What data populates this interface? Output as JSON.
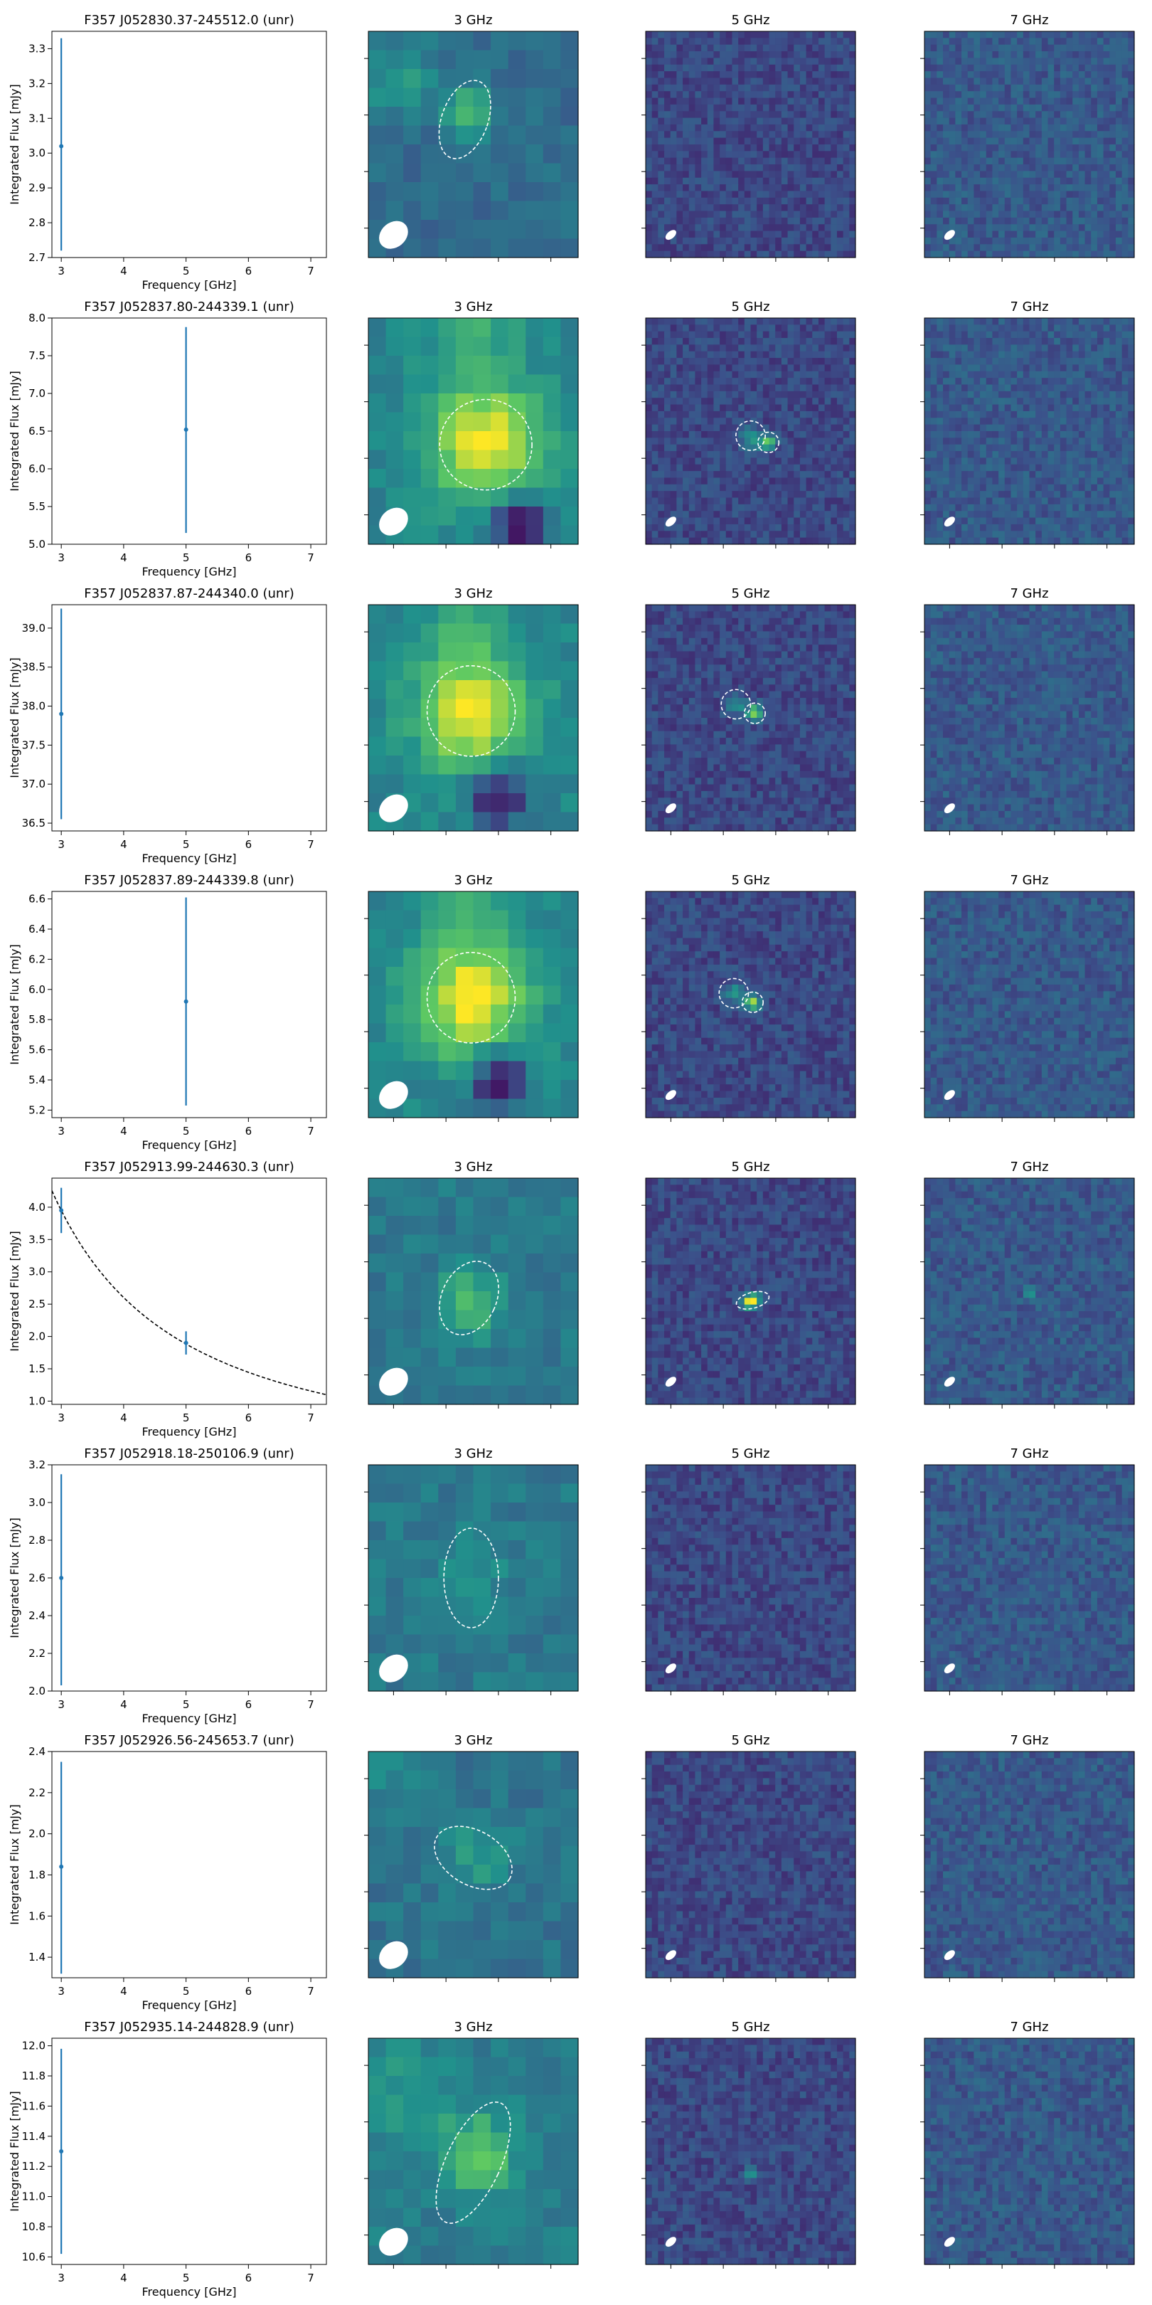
{
  "figure": {
    "colors": {
      "errorbar": "#1f77b4",
      "fit_line": "#000000",
      "beam": "#ffffff",
      "ellipse": "#ffffff",
      "colormap": [
        "#440154",
        "#3b528b",
        "#21918c",
        "#5ec962",
        "#fde725"
      ]
    },
    "band_titles": [
      "3 GHz",
      "5 GHz",
      "7 GHz"
    ],
    "xlabel": "Frequency [GHz]",
    "ylabel": "Integrated Flux [mJy]",
    "xticks": [
      3,
      4,
      5,
      6,
      7
    ],
    "xlim": [
      2.85,
      7.25
    ]
  },
  "chart_data": [
    {
      "type": "scatter",
      "title": "F357 J052830.37-245512.0 (unr)",
      "points": [
        {
          "x": 3,
          "y": 3.02,
          "yerr_low": 2.72,
          "yerr_high": 3.33
        }
      ],
      "ylim": [
        2.7,
        3.35
      ],
      "yticks": [
        "2.7",
        "2.8",
        "2.9",
        "3.0",
        "3.1",
        "3.2",
        "3.3"
      ],
      "fit": null,
      "images": {
        "band3": {
          "base": 0.35,
          "blobs": [
            {
              "cx": 0.48,
              "cy": 0.37,
              "s": 0.08,
              "a": 0.35
            },
            {
              "cx": 0.15,
              "cy": 0.22,
              "s": 0.12,
              "a": 0.18
            }
          ],
          "ellipses": [
            {
              "cx": 0.46,
              "cy": 0.39,
              "rx": 0.11,
              "ry": 0.18,
              "rot": 20
            }
          ],
          "beam": true
        },
        "band5": {
          "base": 0.22,
          "blobs": [],
          "ellipses": [],
          "beam": true
        },
        "band7": {
          "base": 0.28,
          "blobs": [],
          "ellipses": [],
          "beam": true
        }
      }
    },
    {
      "type": "scatter",
      "title": "F357 J052837.80-244339.1 (unr)",
      "points": [
        {
          "x": 5,
          "y": 6.52,
          "yerr_low": 5.15,
          "yerr_high": 7.88
        }
      ],
      "ylim": [
        5.0,
        8.0
      ],
      "yticks": [
        "5.0",
        "5.5",
        "6.0",
        "6.5",
        "7.0",
        "7.5",
        "8.0"
      ],
      "fit": null,
      "images": {
        "band3": {
          "base": 0.45,
          "blobs": [
            {
              "cx": 0.56,
              "cy": 0.55,
              "s": 0.18,
              "a": 0.55
            },
            {
              "cx": 0.5,
              "cy": 0.05,
              "s": 0.15,
              "a": 0.15
            }
          ],
          "dark": [
            {
              "cx": 0.72,
              "cy": 0.9,
              "s": 0.09,
              "a": 0.45
            }
          ],
          "ellipses": [
            {
              "cx": 0.56,
              "cy": 0.56,
              "rx": 0.22,
              "ry": 0.2,
              "rot": 0
            }
          ],
          "beam": true
        },
        "band5": {
          "base": 0.22,
          "blobs": [
            {
              "cx": 0.5,
              "cy": 0.53,
              "s": 0.03,
              "a": 0.35
            },
            {
              "cx": 0.58,
              "cy": 0.55,
              "s": 0.025,
              "a": 0.6
            }
          ],
          "ellipses": [
            {
              "cx": 0.5,
              "cy": 0.52,
              "rx": 0.07,
              "ry": 0.065,
              "rot": 0
            },
            {
              "cx": 0.585,
              "cy": 0.55,
              "rx": 0.05,
              "ry": 0.045,
              "rot": 0
            }
          ],
          "beam": true
        },
        "band7": {
          "base": 0.28,
          "blobs": [],
          "ellipses": [],
          "beam": true
        }
      }
    },
    {
      "type": "scatter",
      "title": "F357 J052837.87-244340.0 (unr)",
      "points": [
        {
          "x": 3,
          "y": 37.9,
          "yerr_low": 36.55,
          "yerr_high": 39.25
        }
      ],
      "ylim": [
        36.4,
        39.3
      ],
      "yticks": [
        "36.5",
        "37.0",
        "37.5",
        "38.0",
        "38.5",
        "39.0"
      ],
      "fit": null,
      "images": {
        "band3": {
          "base": 0.45,
          "blobs": [
            {
              "cx": 0.49,
              "cy": 0.47,
              "s": 0.18,
              "a": 0.55
            },
            {
              "cx": 0.45,
              "cy": 0.05,
              "s": 0.15,
              "a": 0.12
            }
          ],
          "dark": [
            {
              "cx": 0.62,
              "cy": 0.84,
              "s": 0.09,
              "a": 0.45
            }
          ],
          "ellipses": [
            {
              "cx": 0.49,
              "cy": 0.47,
              "rx": 0.21,
              "ry": 0.2,
              "rot": 0
            }
          ],
          "beam": true
        },
        "band5": {
          "base": 0.22,
          "blobs": [
            {
              "cx": 0.43,
              "cy": 0.44,
              "s": 0.03,
              "a": 0.3
            },
            {
              "cx": 0.52,
              "cy": 0.48,
              "s": 0.025,
              "a": 0.6
            }
          ],
          "ellipses": [
            {
              "cx": 0.43,
              "cy": 0.44,
              "rx": 0.07,
              "ry": 0.065,
              "rot": 0
            },
            {
              "cx": 0.52,
              "cy": 0.48,
              "rx": 0.05,
              "ry": 0.045,
              "rot": 0
            }
          ],
          "beam": true
        },
        "band7": {
          "base": 0.28,
          "blobs": [],
          "ellipses": [],
          "beam": true
        }
      }
    },
    {
      "type": "scatter",
      "title": "F357 J052837.89-244339.8 (unr)",
      "points": [
        {
          "x": 5,
          "y": 5.92,
          "yerr_low": 5.23,
          "yerr_high": 6.61
        }
      ],
      "ylim": [
        5.15,
        6.65
      ],
      "yticks": [
        "5.2",
        "5.4",
        "5.6",
        "5.8",
        "6.0",
        "6.2",
        "6.4",
        "6.6"
      ],
      "fit": null,
      "images": {
        "band3": {
          "base": 0.45,
          "blobs": [
            {
              "cx": 0.49,
              "cy": 0.47,
              "s": 0.18,
              "a": 0.55
            },
            {
              "cx": 0.45,
              "cy": 0.05,
              "s": 0.15,
              "a": 0.12
            }
          ],
          "dark": [
            {
              "cx": 0.62,
              "cy": 0.84,
              "s": 0.09,
              "a": 0.45
            }
          ],
          "ellipses": [
            {
              "cx": 0.49,
              "cy": 0.47,
              "rx": 0.21,
              "ry": 0.2,
              "rot": 0
            }
          ],
          "beam": true
        },
        "band5": {
          "base": 0.22,
          "blobs": [
            {
              "cx": 0.42,
              "cy": 0.45,
              "s": 0.03,
              "a": 0.3
            },
            {
              "cx": 0.51,
              "cy": 0.49,
              "s": 0.025,
              "a": 0.6
            }
          ],
          "ellipses": [
            {
              "cx": 0.42,
              "cy": 0.45,
              "rx": 0.07,
              "ry": 0.065,
              "rot": 0
            },
            {
              "cx": 0.51,
              "cy": 0.49,
              "rx": 0.05,
              "ry": 0.045,
              "rot": 0
            }
          ],
          "beam": true
        },
        "band7": {
          "base": 0.28,
          "blobs": [],
          "ellipses": [],
          "beam": true
        }
      }
    },
    {
      "type": "scatter",
      "title": "F357 J052913.99-244630.3 (unr)",
      "points": [
        {
          "x": 3,
          "y": 3.95,
          "yerr_low": 3.6,
          "yerr_high": 4.3
        },
        {
          "x": 5,
          "y": 1.9,
          "yerr_low": 1.72,
          "yerr_high": 2.08
        }
      ],
      "ylim": [
        0.95,
        4.45
      ],
      "yticks": [
        "1.0",
        "1.5",
        "2.0",
        "2.5",
        "3.0",
        "3.5",
        "4.0"
      ],
      "fit": {
        "type": "power-law",
        "x_ref": 3,
        "y_ref": 3.95,
        "alpha": -1.45
      },
      "images": {
        "band3": {
          "base": 0.4,
          "blobs": [
            {
              "cx": 0.48,
              "cy": 0.55,
              "s": 0.1,
              "a": 0.3
            }
          ],
          "ellipses": [
            {
              "cx": 0.48,
              "cy": 0.53,
              "rx": 0.13,
              "ry": 0.17,
              "rot": 25
            }
          ],
          "beam": true
        },
        "band5": {
          "base": 0.22,
          "blobs": [
            {
              "cx": 0.49,
              "cy": 0.55,
              "s": 0.02,
              "a": 0.7
            },
            {
              "cx": 0.52,
              "cy": 0.54,
              "s": 0.02,
              "a": 0.6
            }
          ],
          "ellipses": [
            {
              "cx": 0.51,
              "cy": 0.54,
              "rx": 0.08,
              "ry": 0.035,
              "rot": -15
            }
          ],
          "beam": true
        },
        "band7": {
          "base": 0.28,
          "blobs": [
            {
              "cx": 0.5,
              "cy": 0.5,
              "s": 0.015,
              "a": 0.5
            }
          ],
          "ellipses": [],
          "beam": true
        }
      }
    },
    {
      "type": "scatter",
      "title": "F357 J052918.18-250106.9 (unr)",
      "points": [
        {
          "x": 3,
          "y": 2.6,
          "yerr_low": 2.03,
          "yerr_high": 3.15
        }
      ],
      "ylim": [
        2.0,
        3.2
      ],
      "yticks": [
        "2.0",
        "2.2",
        "2.4",
        "2.6",
        "2.8",
        "3.0",
        "3.2"
      ],
      "fit": null,
      "images": {
        "band3": {
          "base": 0.4,
          "blobs": [
            {
              "cx": 0.48,
              "cy": 0.5,
              "s": 0.12,
              "a": 0.12
            }
          ],
          "ellipses": [
            {
              "cx": 0.49,
              "cy": 0.5,
              "rx": 0.13,
              "ry": 0.22,
              "rot": 0
            }
          ],
          "beam": true
        },
        "band5": {
          "base": 0.22,
          "blobs": [],
          "ellipses": [],
          "beam": true
        },
        "band7": {
          "base": 0.28,
          "blobs": [],
          "ellipses": [],
          "beam": true
        }
      }
    },
    {
      "type": "scatter",
      "title": "F357 J052926.56-245653.7 (unr)",
      "points": [
        {
          "x": 3,
          "y": 1.84,
          "yerr_low": 1.32,
          "yerr_high": 2.35
        }
      ],
      "ylim": [
        1.3,
        2.4
      ],
      "yticks": [
        "1.4",
        "1.6",
        "1.8",
        "2.0",
        "2.2",
        "2.4"
      ],
      "fit": null,
      "images": {
        "band3": {
          "base": 0.38,
          "blobs": [
            {
              "cx": 0.52,
              "cy": 0.47,
              "s": 0.12,
              "a": 0.15
            },
            {
              "cx": 0.1,
              "cy": 0.1,
              "s": 0.1,
              "a": 0.1
            }
          ],
          "ellipses": [
            {
              "cx": 0.5,
              "cy": 0.47,
              "rx": 0.2,
              "ry": 0.12,
              "rot": 30
            }
          ],
          "beam": true
        },
        "band5": {
          "base": 0.22,
          "blobs": [],
          "ellipses": [],
          "beam": true
        },
        "band7": {
          "base": 0.28,
          "blobs": [],
          "ellipses": [],
          "beam": true
        }
      }
    },
    {
      "type": "scatter",
      "title": "F357 J052935.14-244828.9 (unr)",
      "points": [
        {
          "x": 3,
          "y": 11.3,
          "yerr_low": 10.62,
          "yerr_high": 11.98
        }
      ],
      "ylim": [
        10.55,
        12.05
      ],
      "yticks": [
        "10.6",
        "10.8",
        "11.0",
        "11.2",
        "11.4",
        "11.6",
        "11.8",
        "12.0"
      ],
      "fit": null,
      "images": {
        "band3": {
          "base": 0.42,
          "blobs": [
            {
              "cx": 0.52,
              "cy": 0.52,
              "s": 0.12,
              "a": 0.35
            },
            {
              "cx": 0.2,
              "cy": 0.25,
              "s": 0.15,
              "a": 0.12
            }
          ],
          "ellipses": [
            {
              "cx": 0.5,
              "cy": 0.55,
              "rx": 0.13,
              "ry": 0.29,
              "rot": 25
            }
          ],
          "beam": true
        },
        "band5": {
          "base": 0.22,
          "blobs": [
            {
              "cx": 0.5,
              "cy": 0.6,
              "s": 0.02,
              "a": 0.35
            }
          ],
          "ellipses": [],
          "beam": true
        },
        "band7": {
          "base": 0.28,
          "blobs": [],
          "ellipses": [],
          "beam": true
        }
      }
    }
  ]
}
